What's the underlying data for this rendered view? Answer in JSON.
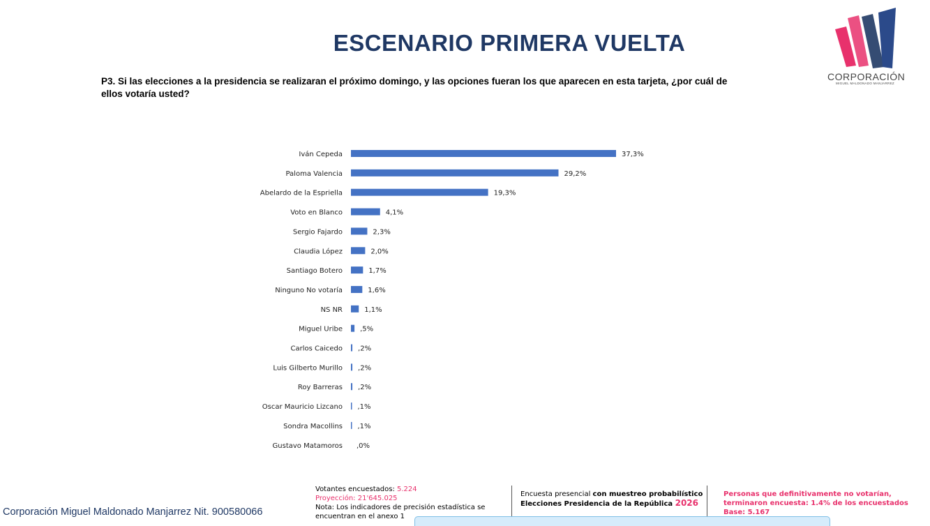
{
  "header": {
    "title": "ESCENARIO PRIMERA VUELTA",
    "question": "P3. Si las elecciones a la presidencia se realizaran el próximo domingo, y las opciones fueran los que aparecen en esta tarjeta, ¿por cuál de ellos votaría usted?"
  },
  "logo": {
    "name": "CORPORACIÓN",
    "subtitle": "MIGUEL MALDONADO MANJARREZ",
    "colors": [
      "#e8316c",
      "#1f3864"
    ]
  },
  "chart_data": {
    "type": "bar",
    "orientation": "horizontal",
    "bar_color": "#4472c4",
    "categories": [
      "Iván Cepeda",
      "Paloma Valencia",
      "Abelardo de la Espriella",
      "Voto en Blanco",
      "Sergio Fajardo",
      "Claudia López",
      "Santiago Botero",
      "Ninguno  No votaría",
      "NS NR",
      "Miguel Uribe",
      "Carlos Caicedo",
      "Luis Gilberto Murillo",
      "Roy Barreras",
      "Oscar Mauricio Lizcano",
      "Sondra Macollins",
      "Gustavo Matamoros"
    ],
    "values": [
      37.3,
      29.2,
      19.3,
      4.1,
      2.3,
      2.0,
      1.7,
      1.6,
      1.1,
      0.5,
      0.2,
      0.2,
      0.2,
      0.1,
      0.1,
      0.0
    ],
    "labels": [
      "37,3%",
      "29,2%",
      "19,3%",
      "4,1%",
      "2,3%",
      "2,0%",
      "1,7%",
      "1,6%",
      "1,1%",
      ",5%",
      ",2%",
      ",2%",
      ",2%",
      ",1%",
      ",1%",
      ",0%"
    ],
    "xlim": [
      0,
      37.3
    ],
    "grid": false,
    "legend": "none"
  },
  "footer": {
    "company": "Corporación Miguel Maldonado Manjarrez Nit. 900580066",
    "votantes_label": "Votantes encuestados: ",
    "votantes_value": "5.224",
    "proyeccion": "Proyección: 21'645.025",
    "nota": "Nota: Los indicadores de precisión estadística se encuentran en el anexo 1",
    "encuesta_prefix": "Encuesta presencial ",
    "encuesta_bold": "con muestreo probabilístico",
    "elecciones": "Elecciones Presidencia de la República ",
    "year": "2026",
    "personas": "Personas que definitivamente no votarían, terminaron encuesta: 1.4% de los encuestados",
    "base": "Base: 5.167"
  }
}
